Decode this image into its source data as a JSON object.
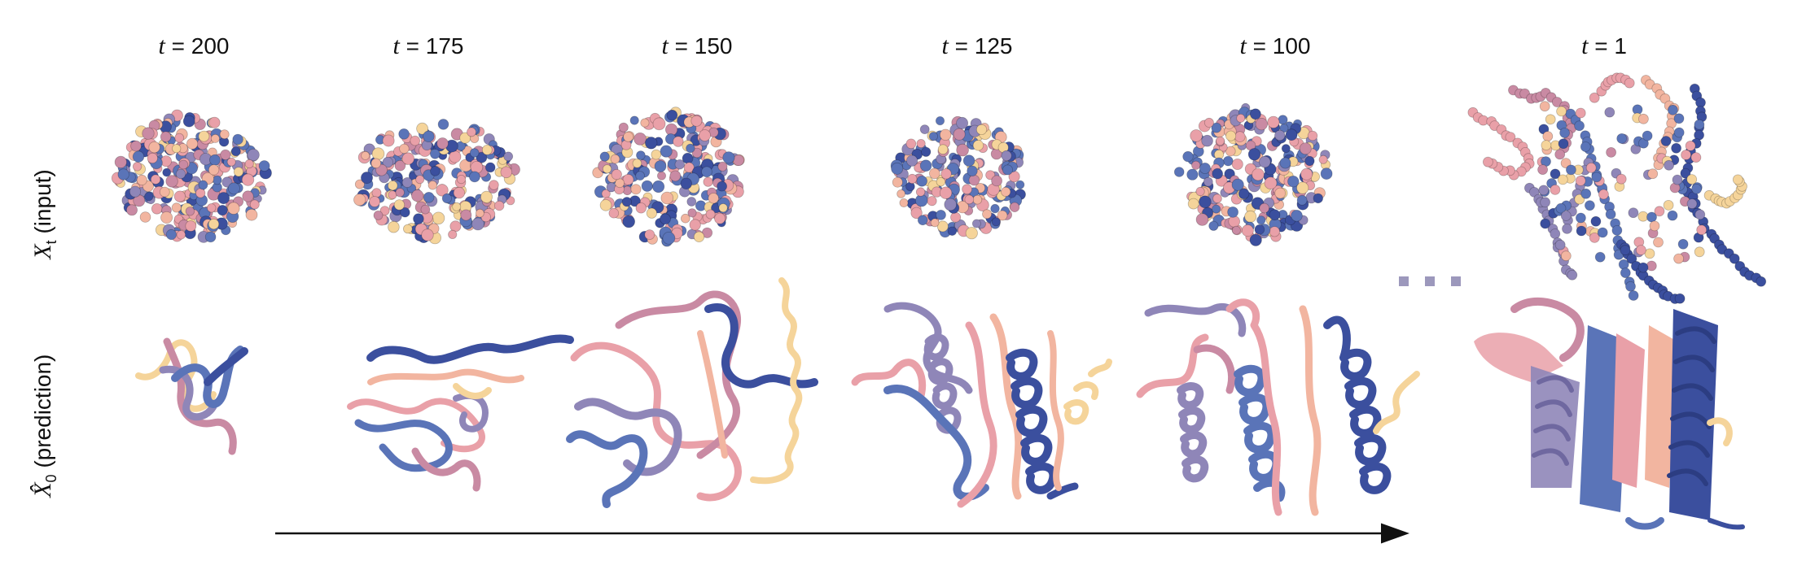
{
  "columns": [
    {
      "var": "t",
      "eq": " = ",
      "value": "200"
    },
    {
      "var": "t",
      "eq": " = ",
      "value": "175"
    },
    {
      "var": "t",
      "eq": " = ",
      "value": "150"
    },
    {
      "var": "t",
      "eq": " = ",
      "value": "125"
    },
    {
      "var": "t",
      "eq": " = ",
      "value": "100"
    },
    {
      "var": "t",
      "eq": " = ",
      "value": "1"
    }
  ],
  "rows": {
    "input": {
      "symbol": "X",
      "subscript": "t",
      "label": " (input)"
    },
    "prediction": {
      "symbol": "X̂",
      "subscript": "0",
      "label": " (prediction)"
    }
  },
  "ellipsis": "...",
  "colors": {
    "navy": "#3b4f9e",
    "blue": "#5a74b8",
    "lavender": "#8f86b8",
    "mauve": "#c98aa3",
    "pink": "#e9a0a8",
    "peach": "#f2b5a0",
    "yellow": "#f5d49a"
  }
}
